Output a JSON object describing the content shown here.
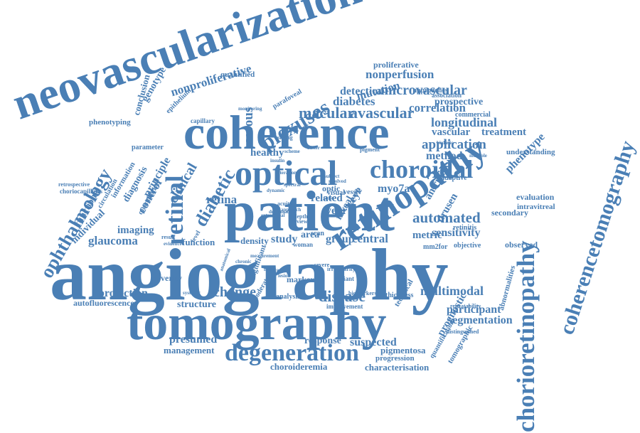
{
  "colors": {
    "word": "#4a7fb5",
    "background": "#ffffff"
  },
  "words": [
    "angiography",
    "tomography",
    "patient",
    "coherence",
    "neovascularization",
    "optical",
    "retinopathy",
    "chorioretinopathy",
    "coherencetomography",
    "ophthalmology",
    "retinal",
    "choroidal",
    "degeneration",
    "plexuses",
    "nonproliferative",
    "microvascular",
    "nonperfusion",
    "macular",
    "avascular",
    "diabetes",
    "mutation",
    "detection",
    "correlation",
    "longitudinal",
    "application",
    "vascular",
    "treatment",
    "automated",
    "sensitivity",
    "multimodal",
    "participant",
    "segmentation",
    "suspected",
    "pigmentosa",
    "choroideremia",
    "characterisation",
    "progression",
    "response",
    "presumed",
    "management",
    "disease",
    "change",
    "structure",
    "projection",
    "autofluorescence",
    "imaging",
    "glaucoma",
    "central",
    "group",
    "study",
    "area",
    "density",
    "function",
    "severity",
    "diabetic",
    "clinical",
    "control",
    "principle",
    "diagnosis",
    "functional",
    "individual",
    "quantitative",
    "phenotyping",
    "genotype",
    "conclusion",
    "parameter",
    "information",
    "circulation",
    "choriocapillaris",
    "retrospective",
    "epithelium",
    "capillary",
    "monitoring",
    "quantified",
    "parafoveal",
    "approaches",
    "association",
    "prospective",
    "commercial",
    "proliferative",
    "phenotype",
    "understanding",
    "evaluation",
    "intravitreal",
    "secondary",
    "observed",
    "objective",
    "retinitis",
    "mm2for",
    "adaptive",
    "aniridia",
    "metric",
    "drusen",
    "method",
    "healthy",
    "related",
    "myo7a",
    "year",
    "serous",
    "retina",
    "foveal",
    "eye",
    "marker",
    "moderate",
    "analysis",
    "significant",
    "technical",
    "thickness",
    "improvement",
    "biomarkers",
    "severe",
    "variant",
    "quantification",
    "prognostic",
    "tomographic",
    "abnormalities",
    "repeatability",
    "distinguished",
    "scan",
    "optic",
    "zone",
    "visual",
    "vessel",
    "woman",
    "acuity",
    "depth",
    "review",
    "face",
    "level",
    "result",
    "evidence",
    "systemic",
    "chronic",
    "irregularity",
    "insulin",
    "scheme",
    "subject",
    "resolved",
    "strong",
    "better",
    "pigment",
    "biallelic",
    "multiple",
    "extrafoveal",
    "measurement",
    "mild",
    "anatomical",
    "underwent",
    "deformation",
    "spectral",
    "alteration",
    "dynamic",
    "approach",
    "lesion",
    "smaller",
    "defect",
    "unusual"
  ]
}
